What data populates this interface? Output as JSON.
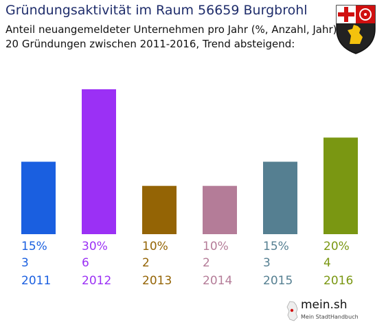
{
  "header": {
    "title": "Gründungsaktivität im Raum 56659 Burgbrohl",
    "subtitle_line1": "Anteil neuangemeldeter Unternehmen pro Jahr (%, Anzahl, Jahr)",
    "subtitle_line2": "20 Gründungen zwischen 2011-2016, Trend absteigend:"
  },
  "brand": {
    "name": "mein.sh",
    "tagline": "Mein StadtHandbuch"
  },
  "chart_data": {
    "type": "bar",
    "title": "Gründungsaktivität im Raum 56659 Burgbrohl",
    "categories": [
      "2011",
      "2012",
      "2013",
      "2014",
      "2015",
      "2016"
    ],
    "values": [
      15,
      30,
      10,
      10,
      15,
      20
    ],
    "percent_labels": [
      "15%",
      "30%",
      "10%",
      "10%",
      "15%",
      "20%"
    ],
    "counts": [
      3,
      6,
      2,
      2,
      3,
      4
    ],
    "colors": [
      "#1a5fe0",
      "#9b30f5",
      "#946405",
      "#b47c98",
      "#557f91",
      "#7a9712"
    ],
    "ylim": [
      0,
      30
    ],
    "grid": false,
    "legend": "none"
  }
}
